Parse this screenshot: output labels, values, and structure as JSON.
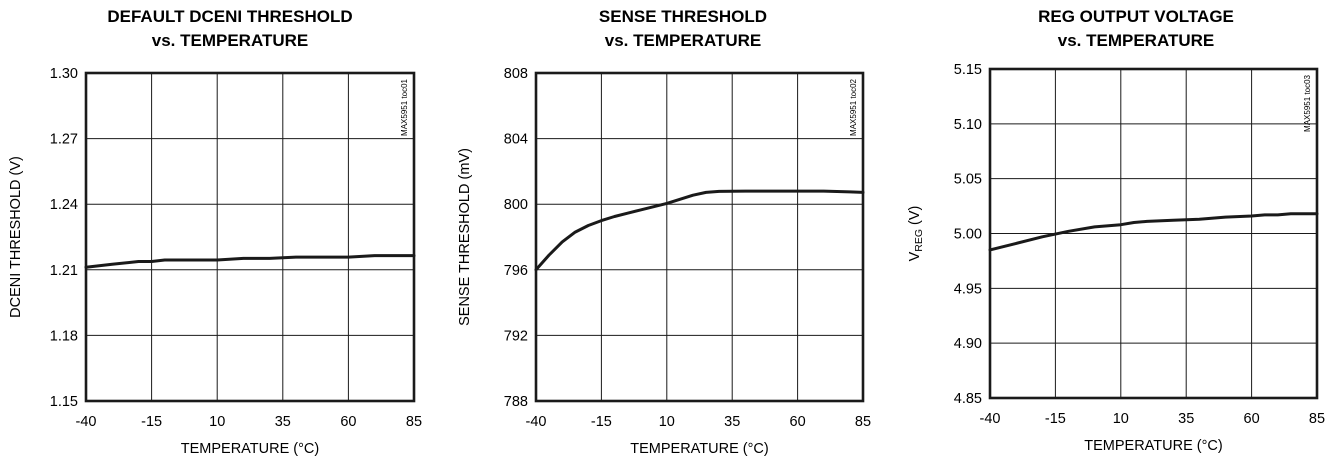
{
  "chart_data": [
    {
      "type": "line",
      "title": [
        "DEFAULT DCENI THRESHOLD",
        "vs. TEMPERATURE"
      ],
      "xlabel": "TEMPERATURE (°C)",
      "ylabel": "DCENI THRESHOLD (V)",
      "ylabel_sub": null,
      "code": "MAX5951 toc01",
      "xlim": [
        -40,
        85
      ],
      "ylim": [
        1.15,
        1.3
      ],
      "xticks": [
        -40,
        -15,
        10,
        35,
        60,
        85
      ],
      "yticks": [
        1.15,
        1.18,
        1.21,
        1.24,
        1.27,
        1.3
      ],
      "ytick_labels": [
        "1.15",
        "1.18",
        "1.21",
        "1.24",
        "1.27",
        "1.30"
      ],
      "grid": true,
      "series": [
        {
          "x": [
            -40,
            -30,
            -20,
            -15,
            -10,
            0,
            5,
            10,
            20,
            30,
            40,
            50,
            60,
            70,
            85
          ],
          "y": [
            1.2112,
            1.2125,
            1.2138,
            1.2138,
            1.2145,
            1.2145,
            1.2145,
            1.2145,
            1.2152,
            1.2152,
            1.2158,
            1.2158,
            1.2158,
            1.2165,
            1.2165
          ]
        }
      ]
    },
    {
      "type": "line",
      "title": [
        "SENSE THRESHOLD",
        "vs. TEMPERATURE"
      ],
      "xlabel": "TEMPERATURE (°C)",
      "ylabel": "SENSE THRESHOLD (mV)",
      "ylabel_sub": null,
      "code": "MAX5951 toc02",
      "xlim": [
        -40,
        85
      ],
      "ylim": [
        788,
        808
      ],
      "xticks": [
        -40,
        -15,
        10,
        35,
        60,
        85
      ],
      "yticks": [
        788,
        792,
        796,
        800,
        804,
        808
      ],
      "ytick_labels": [
        "788",
        "792",
        "796",
        "800",
        "804",
        "808"
      ],
      "grid": true,
      "series": [
        {
          "x": [
            -40,
            -35,
            -30,
            -25,
            -20,
            -15,
            -10,
            -5,
            0,
            5,
            10,
            15,
            20,
            25,
            30,
            40,
            50,
            60,
            70,
            80,
            85
          ],
          "y": [
            796.0,
            796.9,
            797.7,
            798.3,
            798.7,
            799.0,
            799.25,
            799.45,
            799.65,
            799.85,
            800.05,
            800.3,
            800.55,
            800.72,
            800.78,
            800.8,
            800.8,
            800.8,
            800.8,
            800.75,
            800.72
          ]
        }
      ]
    },
    {
      "type": "line",
      "title": [
        "REG OUTPUT VOLTAGE",
        "vs. TEMPERATURE"
      ],
      "xlabel": "TEMPERATURE (°C)",
      "ylabel": "V",
      "ylabel_sub": "REG",
      "ylabel_tail": " (V)",
      "code": "MAX5951 toc03",
      "xlim": [
        -40,
        85
      ],
      "ylim": [
        4.85,
        5.15
      ],
      "xticks": [
        -40,
        -15,
        10,
        35,
        60,
        85
      ],
      "yticks": [
        4.85,
        4.9,
        4.95,
        5.0,
        5.05,
        5.1,
        5.15
      ],
      "ytick_labels": [
        "4.85",
        "4.90",
        "4.95",
        "5.00",
        "5.05",
        "5.10",
        "5.15"
      ],
      "grid": true,
      "series": [
        {
          "x": [
            -40,
            -30,
            -20,
            -10,
            0,
            10,
            15,
            20,
            30,
            40,
            50,
            60,
            65,
            70,
            75,
            80,
            85
          ],
          "y": [
            4.985,
            4.991,
            4.997,
            5.002,
            5.006,
            5.008,
            5.01,
            5.011,
            5.012,
            5.013,
            5.015,
            5.016,
            5.017,
            5.017,
            5.018,
            5.018,
            5.018
          ]
        }
      ]
    }
  ]
}
